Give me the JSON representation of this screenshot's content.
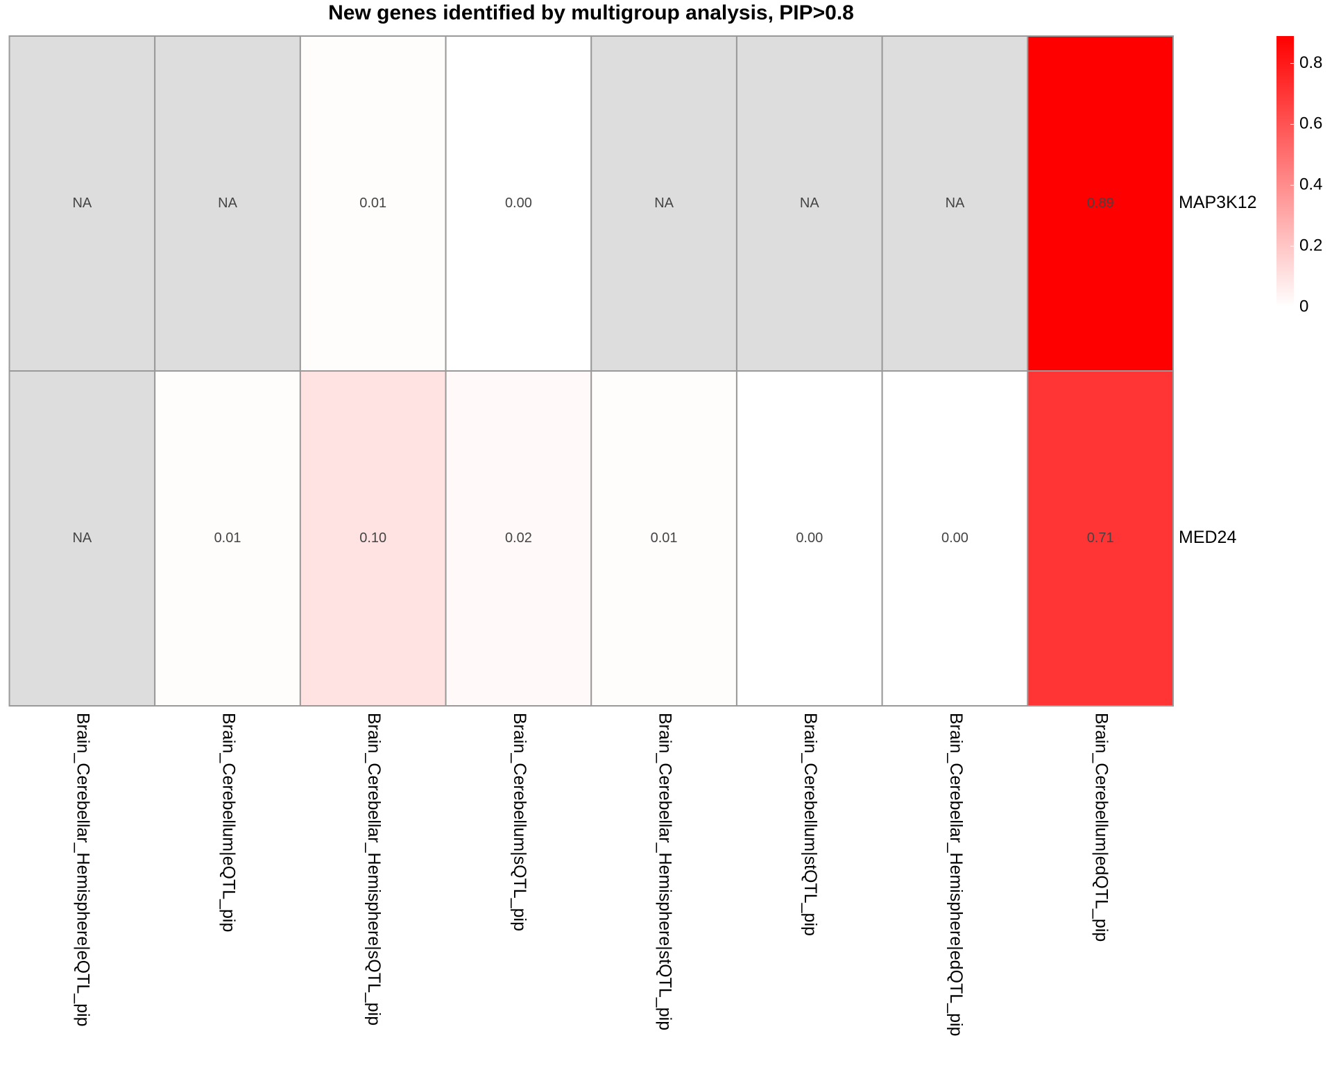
{
  "chart_data": {
    "type": "heatmap",
    "title": "New genes identified by multigroup analysis, PIP>0.8",
    "x_categories": [
      "Brain_Cerebellar_Hemisphere|eQTL_pip",
      "Brain_Cerebellum|eQTL_pip",
      "Brain_Cerebellar_Hemisphere|sQTL_pip",
      "Brain_Cerebellum|sQTL_pip",
      "Brain_Cerebellar_Hemisphere|stQTL_pip",
      "Brain_Cerebellum|stQTL_pip",
      "Brain_Cerebellar_Hemisphere|edQTL_pip",
      "Brain_Cerebellum|edQTL_pip"
    ],
    "y_categories": [
      "MAP3K12",
      "MED24"
    ],
    "values": [
      [
        null,
        null,
        0.01,
        0,
        null,
        null,
        null,
        0.89
      ],
      [
        null,
        0.01,
        0.1,
        0.02,
        0.01,
        0,
        0,
        0.71
      ]
    ],
    "value_labels": [
      [
        "NA",
        "NA",
        "0.01",
        "0.00",
        "NA",
        "NA",
        "NA",
        "0.89"
      ],
      [
        "NA",
        "0.01",
        "0.10",
        "0.02",
        "0.01",
        "0.00",
        "0.00",
        "0.71"
      ]
    ],
    "zlim": [
      0,
      0.89
    ],
    "zticks": [
      0,
      0.2,
      0.4,
      0.6,
      0.8
    ],
    "low_color": "#ffffff",
    "high_color": "#ff0000",
    "na_color": "#dddddd"
  }
}
